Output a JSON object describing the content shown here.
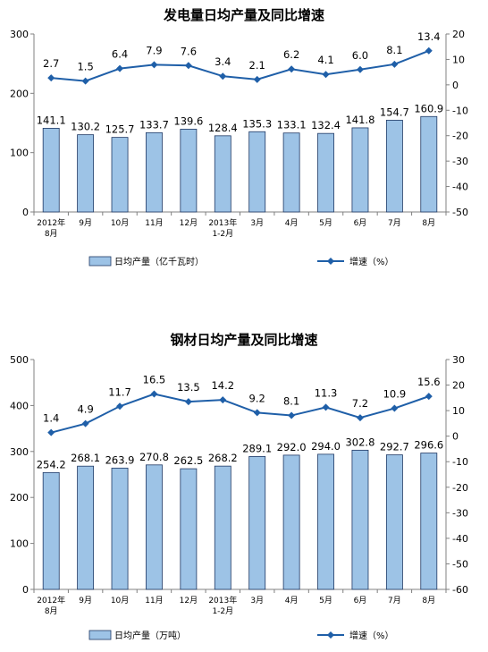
{
  "chart_data": [
    {
      "type": "bar",
      "title": "发电量日均产量及同比增速",
      "categories": [
        [
          "2012年",
          "8月"
        ],
        [
          "9月"
        ],
        [
          "10月"
        ],
        [
          "11月"
        ],
        [
          "12月"
        ],
        [
          "2013年",
          "1-2月"
        ],
        [
          "3月"
        ],
        [
          "4月"
        ],
        [
          "5月"
        ],
        [
          "6月"
        ],
        [
          "7月"
        ],
        [
          "8月"
        ]
      ],
      "left_axis": {
        "min": 0,
        "max": 300,
        "ticks": [
          0,
          100,
          200,
          300
        ]
      },
      "right_axis": {
        "min": -50,
        "max": 20,
        "ticks": [
          -50,
          -40,
          -30,
          -20,
          -10,
          0,
          10,
          20
        ]
      },
      "series": [
        {
          "name": "日均产量（亿千瓦时）",
          "type": "bar",
          "axis": "left",
          "values": [
            141.1,
            130.2,
            125.7,
            133.7,
            139.6,
            128.4,
            135.3,
            133.1,
            132.4,
            141.8,
            154.7,
            160.9
          ],
          "labels": [
            "141.1",
            "130.2",
            "125.7",
            "133.7",
            "139.6",
            "128.4",
            "135.3",
            "133.1",
            "132.4",
            "141.8",
            "154.7",
            "160.9"
          ]
        },
        {
          "name": "增速（%）",
          "type": "line",
          "axis": "right",
          "values": [
            2.7,
            1.5,
            6.4,
            7.9,
            7.6,
            3.4,
            2.1,
            6.2,
            4.1,
            6.0,
            8.1,
            13.4
          ],
          "labels": [
            "2.7",
            "1.5",
            "6.4",
            "7.9",
            "7.6",
            "3.4",
            "2.1",
            "6.2",
            "4.1",
            "6.0",
            "8.1",
            "13.4"
          ]
        }
      ],
      "colors": {
        "bar_fill": "#9dc3e6",
        "bar_stroke": "#1f3864",
        "line": "#1f5fa8"
      }
    },
    {
      "type": "bar",
      "title": "钢材日均产量及同比增速",
      "categories": [
        [
          "2012年",
          "8月"
        ],
        [
          "9月"
        ],
        [
          "10月"
        ],
        [
          "11月"
        ],
        [
          "12月"
        ],
        [
          "2013年",
          "1-2月"
        ],
        [
          "3月"
        ],
        [
          "4月"
        ],
        [
          "5月"
        ],
        [
          "6月"
        ],
        [
          "7月"
        ],
        [
          "8月"
        ]
      ],
      "left_axis": {
        "min": 0,
        "max": 500,
        "ticks": [
          0,
          100,
          200,
          300,
          400,
          500
        ]
      },
      "right_axis": {
        "min": -60,
        "max": 30,
        "ticks": [
          -60,
          -50,
          -40,
          -30,
          -20,
          -10,
          0,
          10,
          20,
          30
        ]
      },
      "series": [
        {
          "name": "日均产量（万吨）",
          "type": "bar",
          "axis": "left",
          "values": [
            254.2,
            268.1,
            263.9,
            270.8,
            262.5,
            268.2,
            289.1,
            292.0,
            294.0,
            302.8,
            292.7,
            296.6
          ],
          "labels": [
            "254.2",
            "268.1",
            "263.9",
            "270.8",
            "262.5",
            "268.2",
            "289.1",
            "292.0",
            "294.0",
            "302.8",
            "292.7",
            "296.6"
          ]
        },
        {
          "name": "增速（%）",
          "type": "line",
          "axis": "right",
          "values": [
            1.4,
            4.9,
            11.7,
            16.5,
            13.5,
            14.2,
            9.2,
            8.1,
            11.3,
            7.2,
            10.9,
            15.6
          ],
          "labels": [
            "1.4",
            "4.9",
            "11.7",
            "16.5",
            "13.5",
            "14.2",
            "9.2",
            "8.1",
            "11.3",
            "7.2",
            "10.9",
            "15.6"
          ]
        }
      ],
      "colors": {
        "bar_fill": "#9dc3e6",
        "bar_stroke": "#1f3864",
        "line": "#1f5fa8"
      }
    }
  ]
}
